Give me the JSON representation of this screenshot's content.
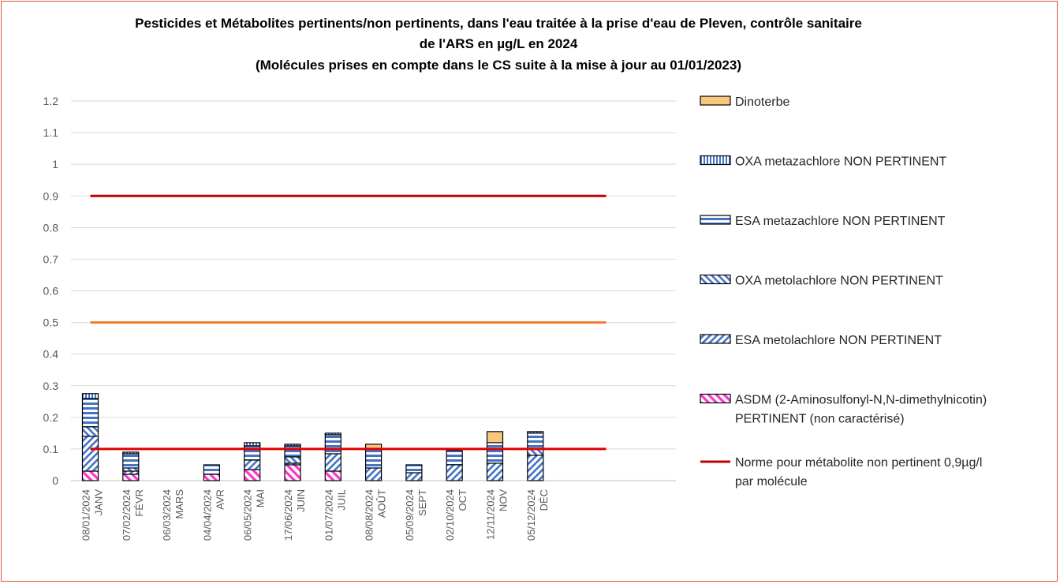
{
  "chart_data": {
    "type": "bar",
    "stacked": true,
    "title_lines": [
      "Pesticides et Métabolites pertinents/non pertinents, dans l'eau traitée à la prise d'eau de Pleven, contrôle sanitaire",
      "de l'ARS en µg/L  en 2024",
      "(Molécules prises en compte dans le CS suite à la mise à jour au 01/01/2023)"
    ],
    "ylim": [
      0,
      1.2
    ],
    "yticks": [
      "0",
      "0.1",
      "0.2",
      "0.3",
      "0.4",
      "0.5",
      "0.6",
      "0.7",
      "0.8",
      "0.9",
      "1",
      "1.1",
      "1.2"
    ],
    "grid": true,
    "legend_position": "right",
    "categories": [
      {
        "date": "08/01/2024",
        "month": "JANV"
      },
      {
        "date": "07/02/2024",
        "month": "FÉVR"
      },
      {
        "date": "06/03/2024",
        "month": "MARS"
      },
      {
        "date": "04/04/2024",
        "month": "AVR"
      },
      {
        "date": "06/05/2024",
        "month": "MAI"
      },
      {
        "date": "17/06/2024",
        "month": "JUIN"
      },
      {
        "date": "01/07/2024",
        "month": "JUIL"
      },
      {
        "date": "08/08/2024",
        "month": "AOÛT"
      },
      {
        "date": "05/09/2024",
        "month": "SEPT"
      },
      {
        "date": "02/10/2024",
        "month": "OCT"
      },
      {
        "date": "12/11/2024",
        "month": "NOV"
      },
      {
        "date": "05/12/2024",
        "month": "DÉC"
      }
    ],
    "series": [
      {
        "name": "ASDM (2-Aminosulfonyl-N,N-dimethylnicotin)",
        "name_line2": "PERTINENT (non caractérisé)",
        "pattern": "asdm",
        "color": "#ff33cc",
        "values": [
          0.03,
          0.02,
          0,
          0.02,
          0.035,
          0.05,
          0.03,
          0,
          0,
          0,
          0,
          0
        ]
      },
      {
        "name": "ESA metolachlore NON PERTINENT",
        "pattern": "esa_meto",
        "color": "#4472c4",
        "values": [
          0.11,
          0.01,
          0,
          0,
          0.03,
          0.005,
          0.055,
          0.04,
          0.025,
          0.05,
          0.055,
          0.08
        ]
      },
      {
        "name": "OXA metolachlore NON PERTINENT",
        "pattern": "oxa_meto",
        "color": "#4472c4",
        "values": [
          0.03,
          0.01,
          0,
          0,
          0,
          0.02,
          0,
          0,
          0,
          0,
          0,
          0.02
        ]
      },
      {
        "name": "ESA metazachlore NON PERTINENT",
        "pattern": "esa_meta",
        "color": "#4472c4",
        "values": [
          0.09,
          0.045,
          0,
          0.03,
          0.045,
          0.035,
          0.06,
          0.06,
          0.025,
          0.045,
          0.065,
          0.05
        ]
      },
      {
        "name": "OXA metazachlore NON PERTINENT",
        "pattern": "oxa_meta",
        "color": "#4472c4",
        "values": [
          0.015,
          0.005,
          0,
          0,
          0.01,
          0.005,
          0.005,
          0,
          0,
          0,
          0,
          0.005
        ]
      },
      {
        "name": "Dinoterbe",
        "pattern": "solid",
        "color": "#f9c77c",
        "values": [
          0,
          0,
          0,
          0,
          0,
          0,
          0,
          0.015,
          0,
          0,
          0.035,
          0
        ]
      }
    ],
    "reference_lines": [
      {
        "name": "Norme pour métabolite non pertinent 0,9µg/l",
        "name_line2": "par molécule",
        "value": 0.9,
        "color": "#c00000",
        "in_legend": true
      },
      {
        "value": 0.5,
        "color": "#ed7d31",
        "in_legend": false
      },
      {
        "value": 0.1,
        "color": "#e00000",
        "in_legend": false
      }
    ]
  }
}
